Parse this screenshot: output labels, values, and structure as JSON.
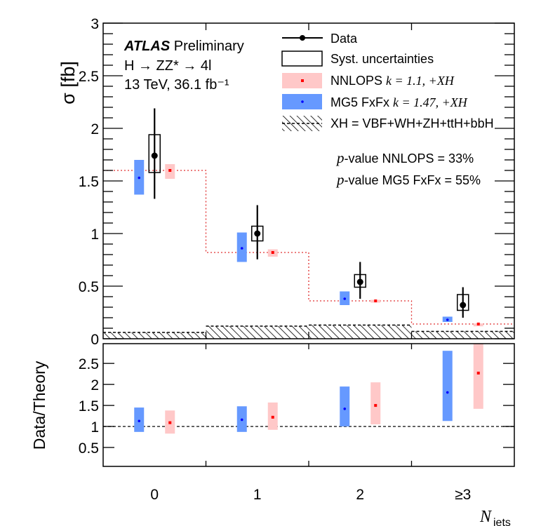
{
  "chart_data": {
    "type": "bar",
    "title": "",
    "experiment_label": {
      "bold": "ATLAS",
      "rest": "Preliminary"
    },
    "process_label": "H → ZZ* → 4l",
    "lumi_label": "13 TeV, 36.1 fb⁻¹",
    "xlabel": "N",
    "xlabel_sub": "jets",
    "ylabel": "σ [fb]",
    "ratio_ylabel": "Data/Theory",
    "categories": [
      "0",
      "1",
      "2",
      "≥3"
    ],
    "ylim": [
      0,
      3
    ],
    "yticks": [
      "0",
      "0.5",
      "1",
      "1.5",
      "2",
      "2.5",
      "3"
    ],
    "ratio_ylim": [
      0.05,
      2.97
    ],
    "ratio_yticks": [
      "0.5",
      "1",
      "1.5",
      "2",
      "2.5"
    ],
    "grid": false,
    "legend_position": "top-right",
    "legend": [
      {
        "label": "Data"
      },
      {
        "label": "Syst. uncertainties"
      },
      {
        "label": "NNLOPS",
        "k": "k = 1.1, +XH"
      },
      {
        "label": "MG5 FxFx",
        "k": "k = 1.47, +XH"
      },
      {
        "label": "XH = VBF+WH+ZH+ttH+bbH"
      }
    ],
    "pvalues": [
      {
        "label": "-value NNLOPS = 33%"
      },
      {
        "label": "-value MG5 FxFx = 55%"
      }
    ],
    "colors": {
      "data": "#000000",
      "nnlops_band": "#ffc8c8",
      "nnlops_marker": "#ff0000",
      "nnlops_line": "#e03030",
      "mg5_band": "#6699ff",
      "mg5_marker": "#0000ff"
    },
    "series": [
      {
        "name": "Data",
        "values": [
          1.74,
          1.0,
          0.54,
          0.32
        ],
        "stat_low": [
          1.33,
          0.755,
          0.38,
          0.2
        ],
        "stat_high": [
          2.19,
          1.27,
          0.73,
          0.49
        ],
        "syst_low": [
          1.58,
          0.93,
          0.49,
          0.27
        ],
        "syst_high": [
          1.94,
          1.07,
          0.61,
          0.42
        ]
      },
      {
        "name": "NNLOPS",
        "values": [
          1.6,
          0.82,
          0.36,
          0.14
        ],
        "low": [
          1.52,
          0.78,
          0.35,
          0.135
        ],
        "high": [
          1.66,
          0.85,
          0.37,
          0.145
        ]
      },
      {
        "name": "MG5 FxFx",
        "values": [
          1.53,
          0.86,
          0.38,
          0.18
        ],
        "low": [
          1.37,
          0.73,
          0.32,
          0.16
        ],
        "high": [
          1.7,
          1.01,
          0.45,
          0.21
        ]
      },
      {
        "name": "XH",
        "values": [
          0.06,
          0.12,
          0.13,
          0.07
        ]
      }
    ],
    "ratio_series": [
      {
        "name": "MG5 FxFx",
        "values": [
          1.13,
          1.16,
          1.42,
          1.81
        ],
        "low": [
          0.87,
          0.87,
          1.0,
          1.13
        ],
        "high": [
          1.45,
          1.48,
          1.95,
          2.8
        ]
      },
      {
        "name": "NNLOPS",
        "values": [
          1.09,
          1.22,
          1.5,
          2.27
        ],
        "low": [
          0.83,
          0.92,
          1.05,
          1.42
        ],
        "high": [
          1.38,
          1.57,
          2.05,
          3.0
        ]
      }
    ]
  }
}
